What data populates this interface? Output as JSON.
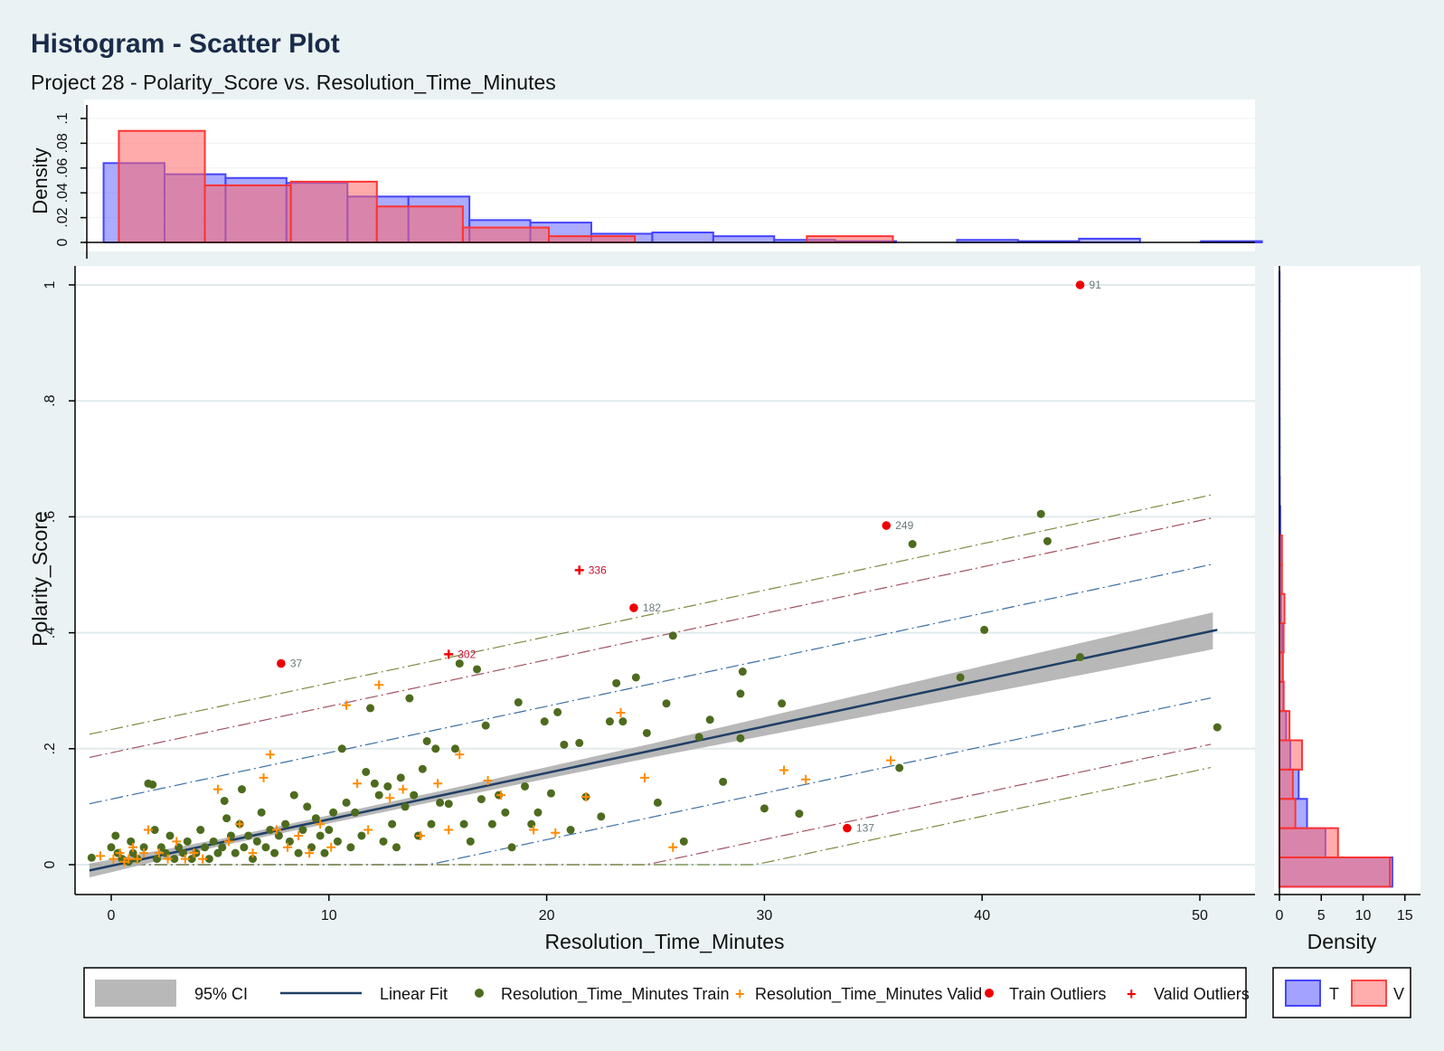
{
  "title": "Histogram - Scatter Plot",
  "subtitle": "Project 28 - Polarity_Score vs. Resolution_Time_Minutes",
  "colors": {
    "background": "#eaf2f3",
    "title": "#1a2b4a",
    "train_hist": "#6666ff",
    "valid_hist": "#ff7777",
    "train_points": "#4d6b1e",
    "valid_points": "#ff8c00",
    "outlier": "#ee0000",
    "fit_line": "#1f3f66",
    "ci_band": "#b0b0b0"
  },
  "chart_data": {
    "type": "scatter",
    "xlabel": "Resolution_Time_Minutes",
    "ylabel": "Polarity_Score",
    "xlim": [
      -2,
      51.5
    ],
    "ylim": [
      -0.05,
      1.03
    ],
    "xticks": [
      "0",
      "10",
      "20",
      "30",
      "40",
      "50"
    ],
    "yticks": [
      "0",
      ".2",
      ".4",
      ".6",
      ".8",
      "1"
    ],
    "grid": true,
    "legend_position": "bottom",
    "fit": {
      "x": [
        -1,
        50.8
      ],
      "y": [
        -0.01,
        0.405
      ]
    },
    "ci_halfwidth": {
      "x": [
        -1,
        5,
        15,
        25,
        35,
        45,
        50.8
      ],
      "h": [
        0.012,
        0.006,
        0.008,
        0.012,
        0.02,
        0.028,
        0.032
      ]
    },
    "bands": [
      {
        "offset": 0.115,
        "color": "#3a6ea5"
      },
      {
        "offset": 0.195,
        "color": "#a05060"
      },
      {
        "offset": 0.235,
        "color": "#7a8a40"
      }
    ],
    "outliers_train": [
      {
        "x": 7.8,
        "y": 0.347,
        "label": "37"
      },
      {
        "x": 24,
        "y": 0.443,
        "label": "182"
      },
      {
        "x": 35.6,
        "y": 0.585,
        "label": "249"
      },
      {
        "x": 44.5,
        "y": 1.0,
        "label": "91"
      },
      {
        "x": 33.8,
        "y": 0.063,
        "label": "137"
      }
    ],
    "outliers_valid": [
      {
        "x": 15.5,
        "y": 0.363,
        "label": "302"
      },
      {
        "x": 21.5,
        "y": 0.508,
        "label": "336"
      }
    ],
    "train": [
      [
        -0.9,
        0.012
      ],
      [
        0,
        0.03
      ],
      [
        0.2,
        0.05
      ],
      [
        0.3,
        0.02
      ],
      [
        0.5,
        0.01
      ],
      [
        0.8,
        0.005
      ],
      [
        0.9,
        0.04
      ],
      [
        1.0,
        0.02
      ],
      [
        1.2,
        0.01
      ],
      [
        1.5,
        0.03
      ],
      [
        1.7,
        0.14
      ],
      [
        1.9,
        0.138
      ],
      [
        2.0,
        0.06
      ],
      [
        2.1,
        0.01
      ],
      [
        2.3,
        0.03
      ],
      [
        2.5,
        0.02
      ],
      [
        2.7,
        0.05
      ],
      [
        2.9,
        0.01
      ],
      [
        3.1,
        0.03
      ],
      [
        3.3,
        0.02
      ],
      [
        3.5,
        0.04
      ],
      [
        3.7,
        0.01
      ],
      [
        3.9,
        0.02
      ],
      [
        4.1,
        0.06
      ],
      [
        4.3,
        0.03
      ],
      [
        4.5,
        0.01
      ],
      [
        4.7,
        0.04
      ],
      [
        4.9,
        0.02
      ],
      [
        5.1,
        0.03
      ],
      [
        5.2,
        0.11
      ],
      [
        5.3,
        0.08
      ],
      [
        5.5,
        0.05
      ],
      [
        5.7,
        0.02
      ],
      [
        5.9,
        0.07
      ],
      [
        6.0,
        0.13
      ],
      [
        6.1,
        0.03
      ],
      [
        6.3,
        0.05
      ],
      [
        6.5,
        0.01
      ],
      [
        6.7,
        0.04
      ],
      [
        6.9,
        0.09
      ],
      [
        7.1,
        0.03
      ],
      [
        7.3,
        0.06
      ],
      [
        7.5,
        0.02
      ],
      [
        7.7,
        0.05
      ],
      [
        8.0,
        0.07
      ],
      [
        8.2,
        0.04
      ],
      [
        8.4,
        0.12
      ],
      [
        8.6,
        0.02
      ],
      [
        8.8,
        0.06
      ],
      [
        9.0,
        0.1
      ],
      [
        9.2,
        0.03
      ],
      [
        9.4,
        0.08
      ],
      [
        9.6,
        0.05
      ],
      [
        9.8,
        0.02
      ],
      [
        10.0,
        0.06
      ],
      [
        10.2,
        0.09
      ],
      [
        10.4,
        0.04
      ],
      [
        10.6,
        0.2
      ],
      [
        10.8,
        0.107
      ],
      [
        11.0,
        0.03
      ],
      [
        11.2,
        0.09
      ],
      [
        11.5,
        0.05
      ],
      [
        11.7,
        0.16
      ],
      [
        11.9,
        0.27
      ],
      [
        12.1,
        0.14
      ],
      [
        12.3,
        0.12
      ],
      [
        12.5,
        0.04
      ],
      [
        12.7,
        0.135
      ],
      [
        12.9,
        0.07
      ],
      [
        13.1,
        0.03
      ],
      [
        13.3,
        0.15
      ],
      [
        13.5,
        0.1
      ],
      [
        13.7,
        0.287
      ],
      [
        13.9,
        0.12
      ],
      [
        14.1,
        0.05
      ],
      [
        14.3,
        0.165
      ],
      [
        14.5,
        0.213
      ],
      [
        14.7,
        0.07
      ],
      [
        14.9,
        0.2
      ],
      [
        15.1,
        0.107
      ],
      [
        15.5,
        0.105
      ],
      [
        15.8,
        0.2
      ],
      [
        16.0,
        0.347
      ],
      [
        16.2,
        0.07
      ],
      [
        16.5,
        0.04
      ],
      [
        16.8,
        0.337
      ],
      [
        17.0,
        0.113
      ],
      [
        17.2,
        0.24
      ],
      [
        17.5,
        0.07
      ],
      [
        17.8,
        0.12
      ],
      [
        18.1,
        0.09
      ],
      [
        18.4,
        0.03
      ],
      [
        18.7,
        0.28
      ],
      [
        19.0,
        0.135
      ],
      [
        19.3,
        0.07
      ],
      [
        19.6,
        0.09
      ],
      [
        19.9,
        0.247
      ],
      [
        20.2,
        0.123
      ],
      [
        20.5,
        0.263
      ],
      [
        20.8,
        0.207
      ],
      [
        21.1,
        0.06
      ],
      [
        21.5,
        0.21
      ],
      [
        21.8,
        0.117
      ],
      [
        22.5,
        0.083
      ],
      [
        22.9,
        0.247
      ],
      [
        23.2,
        0.313
      ],
      [
        23.5,
        0.247
      ],
      [
        24.1,
        0.323
      ],
      [
        24.6,
        0.227
      ],
      [
        25.1,
        0.107
      ],
      [
        25.5,
        0.278
      ],
      [
        25.8,
        0.395
      ],
      [
        26.3,
        0.04
      ],
      [
        27.0,
        0.22
      ],
      [
        27.5,
        0.25
      ],
      [
        28.1,
        0.143
      ],
      [
        28.9,
        0.218
      ],
      [
        28.9,
        0.295
      ],
      [
        29.0,
        0.333
      ],
      [
        30.0,
        0.097
      ],
      [
        30.8,
        0.278
      ],
      [
        31.6,
        0.088
      ],
      [
        36.2,
        0.167
      ],
      [
        36.8,
        0.553
      ],
      [
        39.0,
        0.323
      ],
      [
        40.1,
        0.405
      ],
      [
        42.7,
        0.605
      ],
      [
        43.0,
        0.558
      ],
      [
        44.5,
        0.358
      ],
      [
        50.8,
        0.237
      ]
    ],
    "valid": [
      [
        -0.5,
        0.015
      ],
      [
        0.1,
        0.01
      ],
      [
        0.4,
        0.02
      ],
      [
        0.6,
        0.005
      ],
      [
        0.8,
        0.01
      ],
      [
        1.0,
        0.03
      ],
      [
        1.2,
        0.01
      ],
      [
        1.5,
        0.02
      ],
      [
        1.7,
        0.06
      ],
      [
        2.2,
        0.02
      ],
      [
        2.6,
        0.01
      ],
      [
        3.0,
        0.04
      ],
      [
        3.4,
        0.01
      ],
      [
        3.8,
        0.02
      ],
      [
        4.2,
        0.01
      ],
      [
        4.9,
        0.13
      ],
      [
        5.4,
        0.04
      ],
      [
        5.9,
        0.07
      ],
      [
        6.5,
        0.02
      ],
      [
        7.0,
        0.15
      ],
      [
        7.3,
        0.19
      ],
      [
        7.6,
        0.06
      ],
      [
        8.1,
        0.03
      ],
      [
        8.6,
        0.05
      ],
      [
        9.1,
        0.02
      ],
      [
        9.6,
        0.07
      ],
      [
        10.1,
        0.03
      ],
      [
        10.8,
        0.275
      ],
      [
        11.3,
        0.14
      ],
      [
        11.8,
        0.06
      ],
      [
        12.3,
        0.31
      ],
      [
        12.8,
        0.115
      ],
      [
        13.4,
        0.13
      ],
      [
        14.2,
        0.05
      ],
      [
        15.0,
        0.14
      ],
      [
        15.5,
        0.06
      ],
      [
        16.0,
        0.19
      ],
      [
        17.3,
        0.145
      ],
      [
        17.9,
        0.12
      ],
      [
        19.4,
        0.06
      ],
      [
        20.4,
        0.055
      ],
      [
        21.8,
        0.117
      ],
      [
        23.4,
        0.262
      ],
      [
        24.5,
        0.15
      ],
      [
        25.8,
        0.03
      ],
      [
        30.9,
        0.163
      ],
      [
        31.9,
        0.147
      ],
      [
        35.8,
        0.18
      ]
    ],
    "top_hist": {
      "ylabel": "Density",
      "yticks": [
        "0",
        ".02",
        ".04",
        ".06",
        ".08",
        ".1"
      ],
      "ylim": [
        0,
        0.11
      ],
      "train_bins": [
        [
          -0.35,
          0.064
        ],
        [
          2.45,
          0.055
        ],
        [
          5.25,
          0.052
        ],
        [
          8.05,
          0.048
        ],
        [
          10.85,
          0.037
        ],
        [
          13.65,
          0.037
        ],
        [
          16.45,
          0.018
        ],
        [
          19.25,
          0.016
        ],
        [
          22.05,
          0.007
        ],
        [
          24.85,
          0.008
        ],
        [
          27.65,
          0.005
        ],
        [
          30.45,
          0.002
        ],
        [
          33.25,
          0.001
        ],
        [
          36.05,
          0.0
        ],
        [
          38.85,
          0.002
        ],
        [
          41.65,
          0.001
        ],
        [
          44.45,
          0.003
        ],
        [
          47.25,
          0.0
        ],
        [
          50.05,
          0.001
        ]
      ],
      "train_width": 2.8,
      "valid_bins": [
        [
          0.35,
          0.09
        ],
        [
          4.3,
          0.046
        ],
        [
          8.25,
          0.049
        ],
        [
          12.2,
          0.029
        ],
        [
          16.15,
          0.012
        ],
        [
          20.1,
          0.005
        ],
        [
          24.05,
          0.0
        ],
        [
          28.0,
          0.0
        ],
        [
          31.95,
          0.005
        ]
      ],
      "valid_width": 3.95
    },
    "side_hist": {
      "xlabel": "Density",
      "xticks": [
        "0",
        "5",
        "10",
        "15"
      ],
      "xlim": [
        -0.5,
        16.7
      ],
      "bin_width": 0.0505,
      "train_bins": [
        [
          -0.038,
          13.5
        ],
        [
          0.0125,
          5.5
        ],
        [
          0.063,
          3.3
        ],
        [
          0.1135,
          2.3
        ],
        [
          0.164,
          1.3
        ],
        [
          0.2145,
          0.8
        ],
        [
          0.265,
          0.5
        ],
        [
          0.3155,
          0.4
        ],
        [
          0.366,
          0.3
        ],
        [
          0.4165,
          0.2
        ],
        [
          0.467,
          0.1
        ],
        [
          0.5175,
          0.15
        ],
        [
          0.568,
          0.1
        ],
        [
          0.6185,
          0.05
        ],
        [
          0.669,
          0.03
        ],
        [
          0.7195,
          0.03
        ],
        [
          0.77,
          0.02
        ],
        [
          0.8205,
          0.02
        ],
        [
          0.871,
          0.02
        ],
        [
          0.9215,
          0.02
        ],
        [
          0.972,
          0.02
        ]
      ],
      "valid_bins": [
        [
          -0.038,
          13.2
        ],
        [
          0.0125,
          7.0
        ],
        [
          0.063,
          1.9
        ],
        [
          0.1135,
          1.6
        ],
        [
          0.164,
          2.7
        ],
        [
          0.2145,
          1.2
        ],
        [
          0.265,
          0.5
        ],
        [
          0.3155,
          0.4
        ],
        [
          0.366,
          0.5
        ],
        [
          0.4165,
          0.6
        ],
        [
          0.467,
          0.3
        ],
        [
          0.5175,
          0.3
        ]
      ]
    }
  },
  "legend": {
    "items": [
      "95% CI",
      "Linear Fit",
      "Resolution_Time_Minutes Train",
      "Resolution_Time_Minutes Valid",
      "Train Outliers",
      "Valid Outliers"
    ],
    "hist_items": [
      "T",
      "V"
    ]
  }
}
